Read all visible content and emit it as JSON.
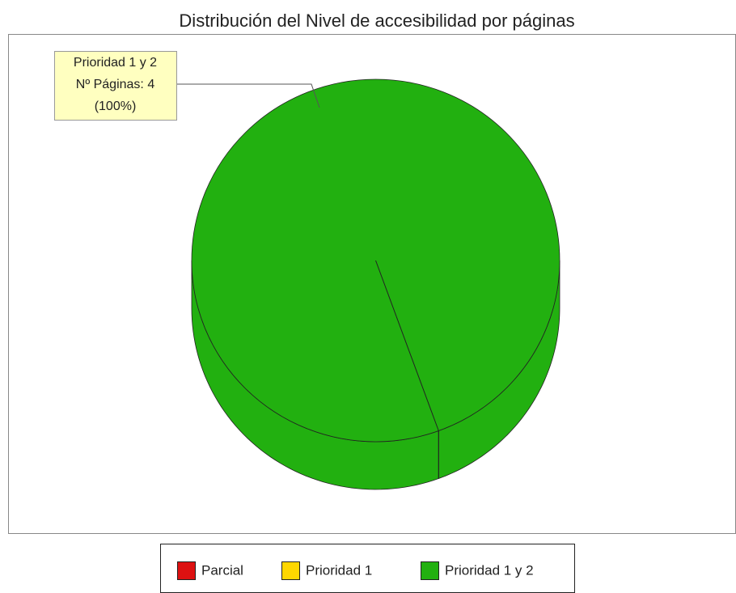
{
  "chart_data": {
    "type": "pie",
    "title": "Distribución del Nivel de accesibilidad por páginas",
    "categories": [
      "Parcial",
      "Prioridad 1",
      "Prioridad 1 y 2"
    ],
    "values": [
      0,
      0,
      4
    ],
    "value_labels": [
      null,
      null,
      "Nº Páginas: 4"
    ],
    "percent_labels": [
      null,
      null,
      "(100%)"
    ],
    "colors": [
      "#dd1111",
      "#ffd700",
      "#22b010"
    ],
    "legend": "bottom"
  }
}
